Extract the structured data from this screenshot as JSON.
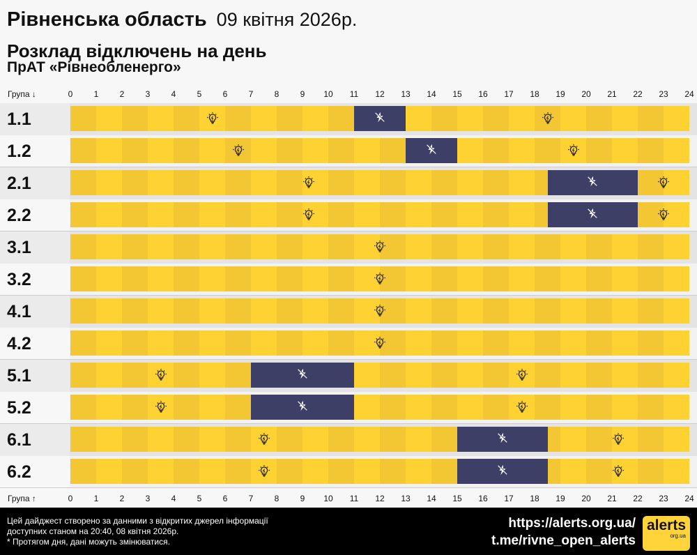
{
  "header": {
    "region": "Рівненська область",
    "date": "09 квітня 2026р.",
    "subtitle": "Розклад відключень на день",
    "company": "ПрАТ «Рівнеобленерго»"
  },
  "axis": {
    "top_label": "Група ↓",
    "bottom_label": "Група ↑",
    "hours": [
      "0",
      "1",
      "2",
      "3",
      "4",
      "5",
      "6",
      "7",
      "8",
      "9",
      "10",
      "11",
      "12",
      "13",
      "14",
      "15",
      "16",
      "17",
      "18",
      "19",
      "20",
      "21",
      "22",
      "23",
      "24"
    ]
  },
  "colors": {
    "on_even": "#f3c633",
    "on_odd": "#fed232",
    "off": "#3d3f66"
  },
  "icons": {
    "on": "lightbulb-icon",
    "off": "power-off-icon"
  },
  "groups": [
    {
      "name": "1.1",
      "outages": [
        [
          11,
          13
        ]
      ]
    },
    {
      "name": "1.2",
      "outages": [
        [
          13,
          15
        ]
      ]
    },
    {
      "name": "2.1",
      "outages": [
        [
          18.5,
          22
        ]
      ]
    },
    {
      "name": "2.2",
      "outages": [
        [
          18.5,
          22
        ]
      ]
    },
    {
      "name": "3.1",
      "outages": []
    },
    {
      "name": "3.2",
      "outages": []
    },
    {
      "name": "4.1",
      "outages": []
    },
    {
      "name": "4.2",
      "outages": []
    },
    {
      "name": "5.1",
      "outages": [
        [
          7,
          11
        ]
      ]
    },
    {
      "name": "5.2",
      "outages": [
        [
          7,
          11
        ]
      ]
    },
    {
      "name": "6.1",
      "outages": [
        [
          15,
          18.5
        ]
      ]
    },
    {
      "name": "6.2",
      "outages": [
        [
          15,
          18.5
        ]
      ]
    }
  ],
  "footer": {
    "note1": "Цей дайджест створено за данними з відкритих джерел інформації",
    "note2": "доступних станом на 20:40, 08 квітня 2026р.",
    "note3": "* Протягом дня, дані можуть змінюватися.",
    "link1": "https://alerts.org.ua/",
    "link2": "t.me/rivne_open_alerts",
    "logo": "alerts",
    "logo_sub": "org.ua"
  }
}
